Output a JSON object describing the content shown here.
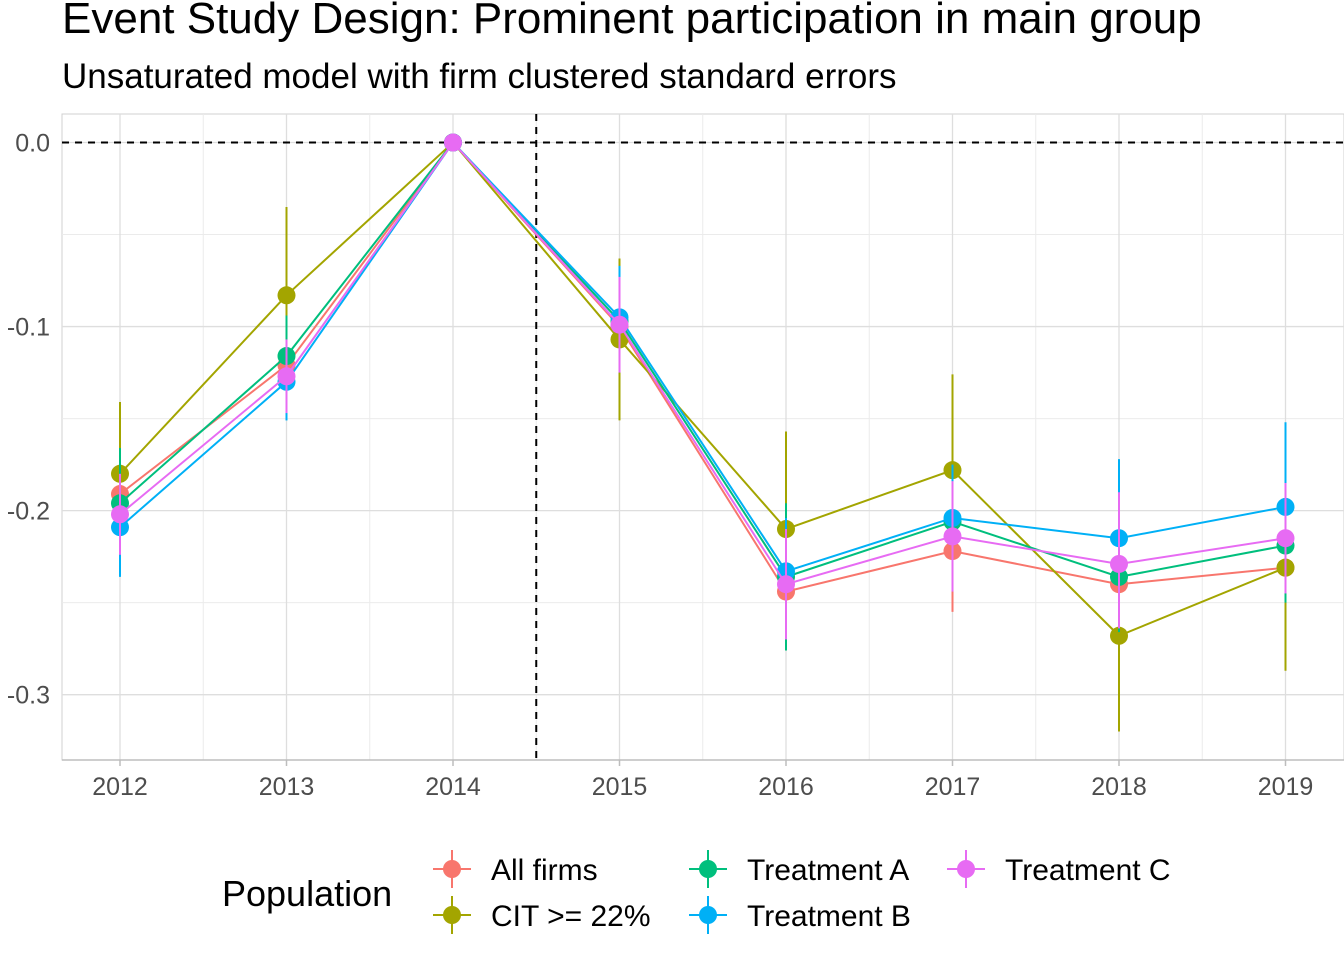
{
  "chart_data": {
    "type": "line",
    "title": "Event Study Design: Prominent participation in main group",
    "subtitle": "Unsaturated model with firm clustered standard errors",
    "xlabel": "",
    "ylabel": "",
    "categories": [
      "2012",
      "2013",
      "2014",
      "2015",
      "2016",
      "2017",
      "2018",
      "2019"
    ],
    "ylim": [
      -0.3355,
      0.0155
    ],
    "yticks": [
      0.0,
      -0.1,
      -0.2,
      -0.3
    ],
    "ytick_labels": [
      "0.0",
      "-0.1",
      "-0.2",
      "-0.3"
    ],
    "grid": true,
    "reference_lines": {
      "horizontal_y": 0.0,
      "vertical_between": [
        "2014",
        "2015"
      ],
      "style": "dashed"
    },
    "legend": {
      "title": "Population",
      "position": "bottom"
    },
    "series": [
      {
        "name": "All firms",
        "color": "#F8766D",
        "values": [
          -0.191,
          -0.121,
          0.0,
          -0.1,
          -0.244,
          -0.222,
          -0.24,
          -0.231
        ],
        "ci_low": [
          -0.224,
          -0.145,
          0.0,
          -0.128,
          -0.272,
          -0.255,
          -0.27,
          -0.262
        ],
        "ci_high": [
          -0.158,
          -0.097,
          0.0,
          -0.072,
          -0.216,
          -0.189,
          -0.21,
          -0.2
        ]
      },
      {
        "name": "CIT >= 22%",
        "color": "#A3A500",
        "values": [
          -0.18,
          -0.083,
          0.0,
          -0.107,
          -0.21,
          -0.178,
          -0.268,
          -0.231
        ],
        "ci_low": [
          -0.219,
          -0.131,
          0.0,
          -0.151,
          -0.264,
          -0.229,
          -0.32,
          -0.287
        ],
        "ci_high": [
          -0.141,
          -0.035,
          0.0,
          -0.063,
          -0.157,
          -0.126,
          -0.216,
          -0.175
        ]
      },
      {
        "name": "Treatment A",
        "color": "#00BF7D",
        "values": [
          -0.196,
          -0.116,
          0.0,
          -0.097,
          -0.236,
          -0.206,
          -0.236,
          -0.219
        ],
        "ci_low": [
          -0.226,
          -0.138,
          0.0,
          -0.125,
          -0.276,
          -0.235,
          -0.266,
          -0.25
        ],
        "ci_high": [
          -0.166,
          -0.094,
          0.0,
          -0.069,
          -0.196,
          -0.177,
          -0.206,
          -0.188
        ]
      },
      {
        "name": "Treatment B",
        "color": "#00B0F6",
        "values": [
          -0.209,
          -0.13,
          0.0,
          -0.095,
          -0.233,
          -0.204,
          -0.215,
          -0.198
        ],
        "ci_low": [
          -0.236,
          -0.151,
          0.0,
          -0.123,
          -0.262,
          -0.233,
          -0.258,
          -0.24
        ],
        "ci_high": [
          -0.182,
          -0.109,
          0.0,
          -0.067,
          -0.204,
          -0.175,
          -0.172,
          -0.152
        ]
      },
      {
        "name": "Treatment C",
        "color": "#E76BF3",
        "values": [
          -0.202,
          -0.127,
          0.0,
          -0.099,
          -0.24,
          -0.214,
          -0.229,
          -0.215
        ],
        "ci_low": [
          -0.224,
          -0.147,
          0.0,
          -0.125,
          -0.27,
          -0.244,
          -0.264,
          -0.245
        ],
        "ci_high": [
          -0.18,
          -0.107,
          0.0,
          -0.073,
          -0.21,
          -0.184,
          -0.19,
          -0.185
        ]
      }
    ]
  }
}
